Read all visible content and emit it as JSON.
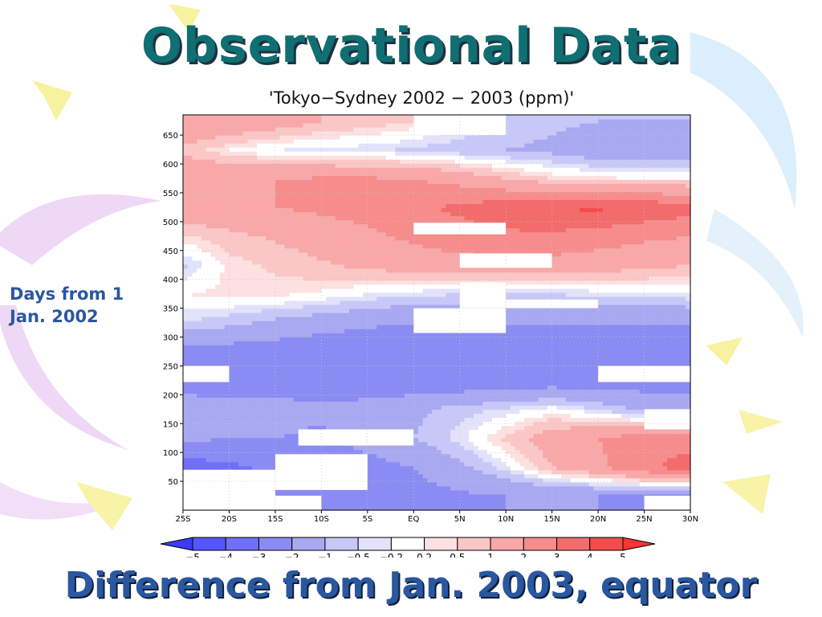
{
  "slide": {
    "title": "Observational Data",
    "caption": "Difference from Jan. 2003, equator",
    "side_label_line1": "Days from 1",
    "side_label_line2": "Jan. 2002"
  },
  "colors": {
    "title": "#0f6f73",
    "caption": "#2a57a0",
    "negative_max": "#3a3aff",
    "positive_max": "#ff4040"
  },
  "chart_data": {
    "type": "heatmap",
    "title": "'Tokyo−Sydney 2002 − 2003 (ppm)'",
    "xlabel": "",
    "ylabel": "",
    "x_tick_labels": [
      "25S",
      "20S",
      "15S",
      "10S",
      "5S",
      "EQ",
      "5N",
      "10N",
      "15N",
      "20N",
      "25N",
      "30N"
    ],
    "x_values": [
      -25,
      -20,
      -15,
      -10,
      -5,
      0,
      5,
      10,
      15,
      20,
      25,
      30
    ],
    "xlim": [
      -25,
      30
    ],
    "y_tick_labels": [
      "50",
      "100",
      "150",
      "200",
      "250",
      "300",
      "350",
      "400",
      "450",
      "500",
      "550",
      "600",
      "650"
    ],
    "y_values": [
      50,
      100,
      150,
      200,
      250,
      300,
      350,
      400,
      450,
      500,
      550,
      600,
      650
    ],
    "ylim": [
      0,
      685
    ],
    "grid": true,
    "colorbar": {
      "levels": [
        "−5",
        "−4",
        "−3",
        "−2",
        "−1",
        "−0.5",
        "−0.2",
        "0.2",
        "0.5",
        "1",
        "2",
        "3",
        "4",
        "5"
      ],
      "bin_colors": [
        "#3b3bff",
        "#5555ff",
        "#6f6ff8",
        "#8b8bf4",
        "#a9a9f2",
        "#c8c8f8",
        "#e2e2fb",
        "#ffffff",
        "#fde0e0",
        "#fbc6c6",
        "#f8a8a8",
        "#f68c8c",
        "#f36c6c",
        "#f24c4c",
        "#ff3434"
      ]
    },
    "cells_note_removed": true,
    "grid_x": [
      -25,
      -20,
      -15,
      -10,
      -5,
      0,
      5,
      10,
      15,
      20,
      25,
      30
    ],
    "grid_y": [
      25,
      75,
      125,
      175,
      225,
      275,
      325,
      375,
      425,
      475,
      525,
      575,
      625,
      675
    ],
    "grid_z": [
      [
        -2.5,
        -2.6,
        -2.8,
        -2.8,
        -2.6,
        -2.4,
        -2.2,
        -2.0,
        -2.0,
        -2.0,
        -2.2,
        -2.4
      ],
      [
        -3.5,
        -3.2,
        -2.8,
        -2.5,
        -2.4,
        -2.0,
        -1.2,
        -0.3,
        1.0,
        1.8,
        2.8,
        3.5
      ],
      [
        -1.8,
        -2.0,
        -2.0,
        -2.2,
        -1.6,
        -1.0,
        -0.3,
        0.6,
        1.5,
        2.0,
        2.5,
        2.5
      ],
      [
        -1.5,
        -1.6,
        -1.6,
        -1.8,
        -1.6,
        -1.2,
        -0.7,
        -0.4,
        0.0,
        -0.5,
        -1.2,
        -1.5
      ],
      [
        -2.5,
        -2.5,
        -2.6,
        -2.6,
        -2.7,
        -2.8,
        -2.8,
        -2.8,
        -2.6,
        -2.6,
        -2.5,
        -2.5
      ],
      [
        -2.4,
        -2.5,
        -2.6,
        -2.8,
        -3.0,
        -3.0,
        -3.0,
        -2.9,
        -2.8,
        -2.6,
        -2.6,
        -3.0
      ],
      [
        -0.5,
        -0.8,
        -1.2,
        -1.5,
        -1.8,
        -2.0,
        -2.0,
        -2.0,
        -2.0,
        -2.0,
        -2.0,
        -2.0
      ],
      [
        0.2,
        0.3,
        0.3,
        0.1,
        -0.2,
        -0.4,
        -0.5,
        -0.6,
        -0.5,
        -0.4,
        -0.3,
        -0.2
      ],
      [
        -0.6,
        0.3,
        0.6,
        0.9,
        1.2,
        1.4,
        1.6,
        1.6,
        1.6,
        1.4,
        1.2,
        1.0
      ],
      [
        0.4,
        0.8,
        1.1,
        1.4,
        1.8,
        2.2,
        2.6,
        2.8,
        2.8,
        2.5,
        2.2,
        2.0
      ],
      [
        1.6,
        1.8,
        2.0,
        2.2,
        2.4,
        2.8,
        3.2,
        3.6,
        4.0,
        4.2,
        3.8,
        3.4
      ],
      [
        1.8,
        1.9,
        2.0,
        2.1,
        2.1,
        2.0,
        1.6,
        1.0,
        0.5,
        0.3,
        0.2,
        0.2
      ],
      [
        0.8,
        0.2,
        -0.2,
        -0.3,
        -0.4,
        -0.6,
        -0.8,
        -1.0,
        -1.2,
        -1.6,
        -1.8,
        -1.6
      ],
      [
        2.0,
        1.8,
        1.5,
        1.0,
        0.8,
        0.5,
        0.0,
        -0.5,
        -0.8,
        -1.0,
        -1.0,
        -1.0
      ]
    ],
    "missing_blocks": [
      {
        "x0": -25,
        "x1": -15,
        "y0": 0,
        "y1": 70
      },
      {
        "x0": -15,
        "x1": -10,
        "y0": 0,
        "y1": 25
      },
      {
        "x0": -15,
        "x1": -5,
        "y0": 35,
        "y1": 97
      },
      {
        "x0": -12.5,
        "x1": 0,
        "y0": 112,
        "y1": 140
      },
      {
        "x0": 25,
        "x1": 30,
        "y0": 140,
        "y1": 175
      },
      {
        "x0": 25,
        "x1": 30,
        "y0": 0,
        "y1": 25
      },
      {
        "x0": -25,
        "x1": -20,
        "y0": 222,
        "y1": 250
      },
      {
        "x0": 20,
        "x1": 30,
        "y0": 222,
        "y1": 250
      },
      {
        "x0": 0,
        "x1": 10,
        "y0": 307,
        "y1": 350
      },
      {
        "x0": 5,
        "x1": 10,
        "y0": 350,
        "y1": 395
      },
      {
        "x0": 10,
        "x1": 20,
        "y0": 350,
        "y1": 365
      },
      {
        "x0": 5,
        "x1": 15,
        "y0": 420,
        "y1": 445
      },
      {
        "x0": 0,
        "x1": 10,
        "y0": 478,
        "y1": 498
      },
      {
        "x0": 0,
        "x1": 10,
        "y0": 650,
        "y1": 685
      }
    ]
  }
}
